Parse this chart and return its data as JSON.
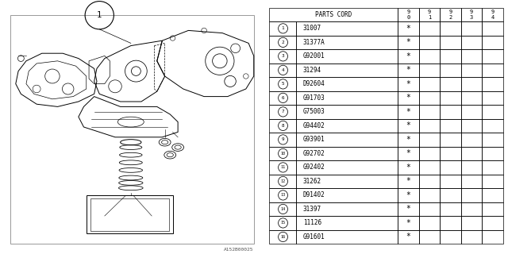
{
  "watermark": "A152B00025",
  "rows": [
    {
      "num": 1,
      "part": "31007",
      "marks": [
        true,
        false,
        false,
        false,
        false
      ]
    },
    {
      "num": 2,
      "part": "31377A",
      "marks": [
        true,
        false,
        false,
        false,
        false
      ]
    },
    {
      "num": 3,
      "part": "G92001",
      "marks": [
        true,
        false,
        false,
        false,
        false
      ]
    },
    {
      "num": 4,
      "part": "31294",
      "marks": [
        true,
        false,
        false,
        false,
        false
      ]
    },
    {
      "num": 5,
      "part": "D92604",
      "marks": [
        true,
        false,
        false,
        false,
        false
      ]
    },
    {
      "num": 6,
      "part": "G91703",
      "marks": [
        true,
        false,
        false,
        false,
        false
      ]
    },
    {
      "num": 7,
      "part": "G75003",
      "marks": [
        true,
        false,
        false,
        false,
        false
      ]
    },
    {
      "num": 8,
      "part": "G94402",
      "marks": [
        true,
        false,
        false,
        false,
        false
      ]
    },
    {
      "num": 9,
      "part": "G93901",
      "marks": [
        true,
        false,
        false,
        false,
        false
      ]
    },
    {
      "num": 10,
      "part": "G92702",
      "marks": [
        true,
        false,
        false,
        false,
        false
      ]
    },
    {
      "num": 11,
      "part": "G92402",
      "marks": [
        true,
        false,
        false,
        false,
        false
      ]
    },
    {
      "num": 12,
      "part": "31262",
      "marks": [
        true,
        false,
        false,
        false,
        false
      ]
    },
    {
      "num": 13,
      "part": "D91402",
      "marks": [
        true,
        false,
        false,
        false,
        false
      ]
    },
    {
      "num": 14,
      "part": "31397",
      "marks": [
        true,
        false,
        false,
        false,
        false
      ]
    },
    {
      "num": 15,
      "part": "11126",
      "marks": [
        true,
        false,
        false,
        false,
        false
      ]
    },
    {
      "num": 16,
      "part": "G91601",
      "marks": [
        true,
        false,
        false,
        false,
        false
      ]
    }
  ],
  "year_headers": [
    [
      "9",
      "0"
    ],
    [
      "9",
      "1"
    ],
    [
      "9",
      "2"
    ],
    [
      "9",
      "3"
    ],
    [
      "9",
      "4"
    ]
  ],
  "bg_color": "#ffffff",
  "line_color": "#000000",
  "table_font_size": 5.5,
  "diag_split": 0.515
}
